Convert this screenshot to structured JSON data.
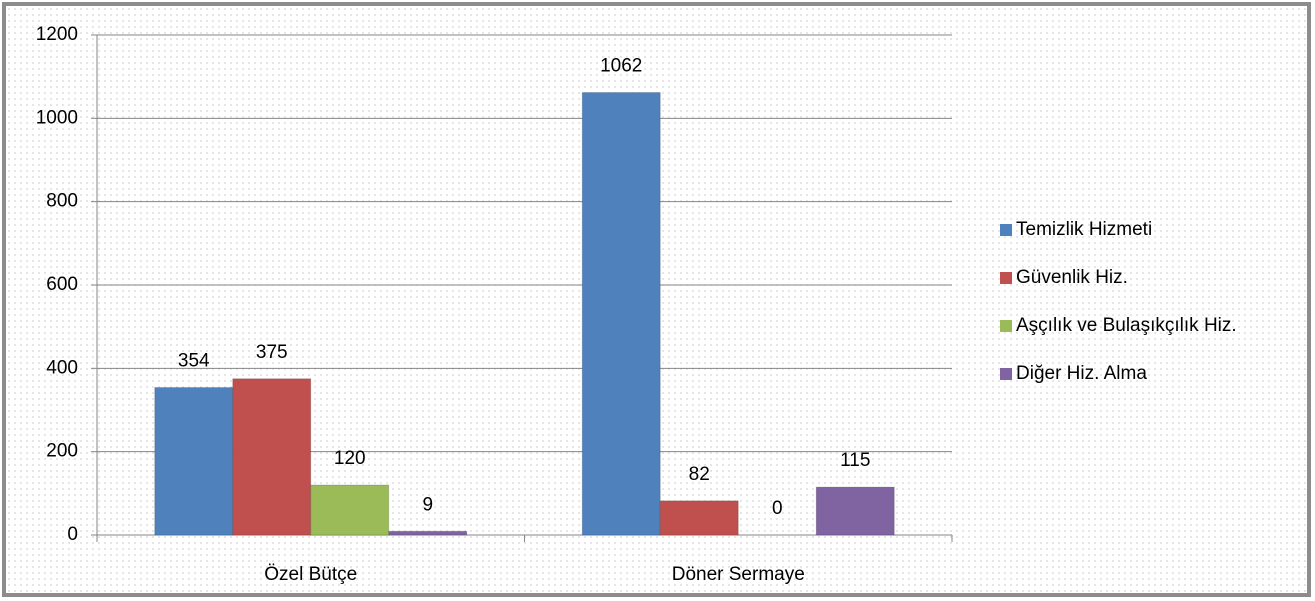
{
  "chart_data": {
    "type": "bar",
    "categories": [
      "Özel Bütçe",
      "Döner Sermaye"
    ],
    "series": [
      {
        "name": "Temizlik Hizmeti",
        "color": "#4f81bd",
        "values": [
          354,
          1062
        ]
      },
      {
        "name": "Güvenlik Hiz.",
        "color": "#c0504d",
        "values": [
          375,
          82
        ]
      },
      {
        "name": "Aşçılık ve Bulaşıkçılık Hiz.",
        "color": "#9bbb59",
        "values": [
          120,
          0
        ]
      },
      {
        "name": "Diğer Hiz. Alma",
        "color": "#8064a2",
        "values": [
          9,
          115
        ]
      }
    ],
    "ylim": [
      0,
      1200
    ],
    "yticks": [
      0,
      200,
      400,
      600,
      800,
      1000,
      1200
    ],
    "grid": true,
    "legend": "right"
  }
}
